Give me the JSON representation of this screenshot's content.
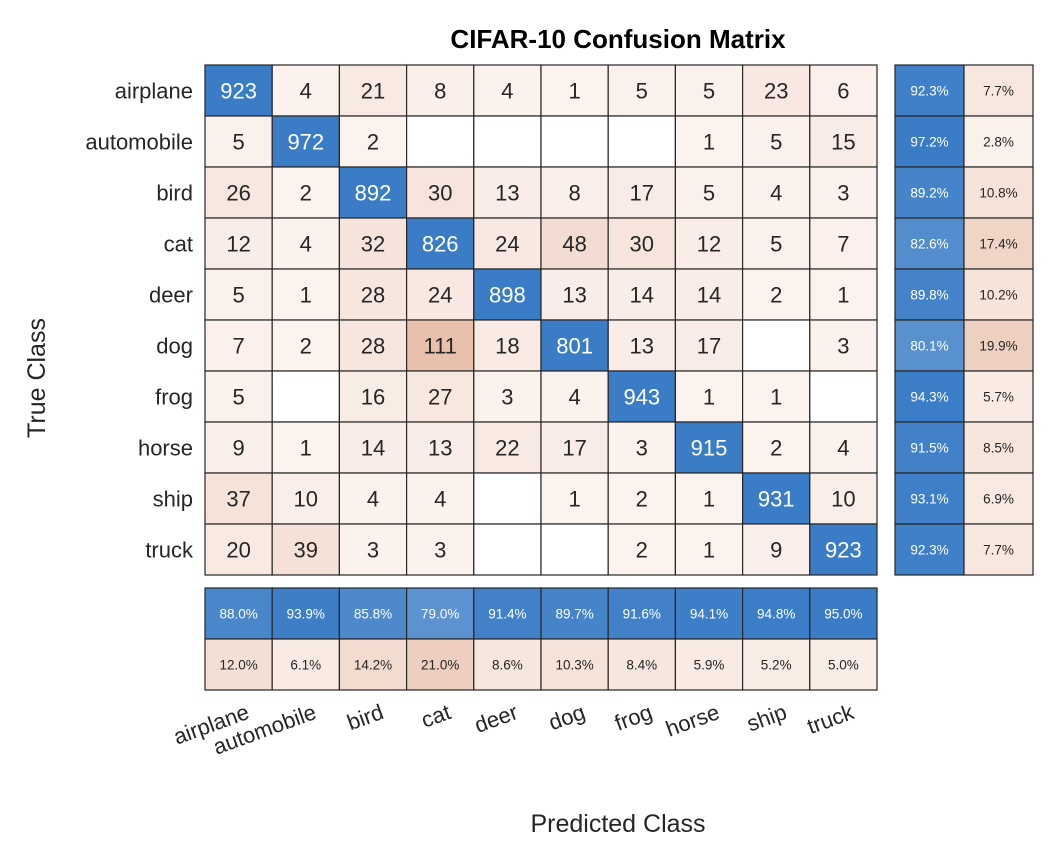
{
  "chart_data": {
    "type": "heatmap",
    "title": "CIFAR-10 Confusion Matrix",
    "xlabel": "Predicted Class",
    "ylabel": "True Class",
    "classes": [
      "airplane",
      "automobile",
      "bird",
      "cat",
      "deer",
      "dog",
      "frog",
      "horse",
      "ship",
      "truck"
    ],
    "matrix": [
      [
        923,
        4,
        21,
        8,
        4,
        1,
        5,
        5,
        23,
        6
      ],
      [
        5,
        972,
        2,
        0,
        0,
        0,
        0,
        1,
        5,
        15
      ],
      [
        26,
        2,
        892,
        30,
        13,
        8,
        17,
        5,
        4,
        3
      ],
      [
        12,
        4,
        32,
        826,
        24,
        48,
        30,
        12,
        5,
        7
      ],
      [
        5,
        1,
        28,
        24,
        898,
        13,
        14,
        14,
        2,
        1
      ],
      [
        7,
        2,
        28,
        111,
        18,
        801,
        13,
        17,
        0,
        3
      ],
      [
        5,
        0,
        16,
        27,
        3,
        4,
        943,
        1,
        1,
        0
      ],
      [
        9,
        1,
        14,
        13,
        22,
        17,
        3,
        915,
        2,
        4
      ],
      [
        37,
        10,
        4,
        4,
        0,
        1,
        2,
        1,
        931,
        10
      ],
      [
        20,
        39,
        3,
        3,
        0,
        0,
        2,
        1,
        9,
        923
      ]
    ],
    "row_summary": {
      "correct": [
        "92.3%",
        "97.2%",
        "89.2%",
        "82.6%",
        "89.8%",
        "80.1%",
        "94.3%",
        "91.5%",
        "93.1%",
        "92.3%"
      ],
      "incorrect": [
        "7.7%",
        "2.8%",
        "10.8%",
        "17.4%",
        "10.2%",
        "19.9%",
        "5.7%",
        "8.5%",
        "6.9%",
        "7.7%"
      ]
    },
    "column_summary": {
      "correct": [
        "88.0%",
        "93.9%",
        "85.8%",
        "79.0%",
        "91.4%",
        "89.7%",
        "91.6%",
        "94.1%",
        "94.8%",
        "95.0%"
      ],
      "incorrect": [
        "12.0%",
        "6.1%",
        "14.2%",
        "21.0%",
        "8.6%",
        "10.3%",
        "8.4%",
        "5.9%",
        "5.2%",
        "5.0%"
      ]
    },
    "colors": {
      "diagonal": "#3a7cc6",
      "off_diagonal_max": "#e8c0ac",
      "empty": "#ffffff",
      "summary_correct": "#3a7cc6",
      "summary_incorrect": "#e8c0ac",
      "border": "#262626"
    }
  }
}
